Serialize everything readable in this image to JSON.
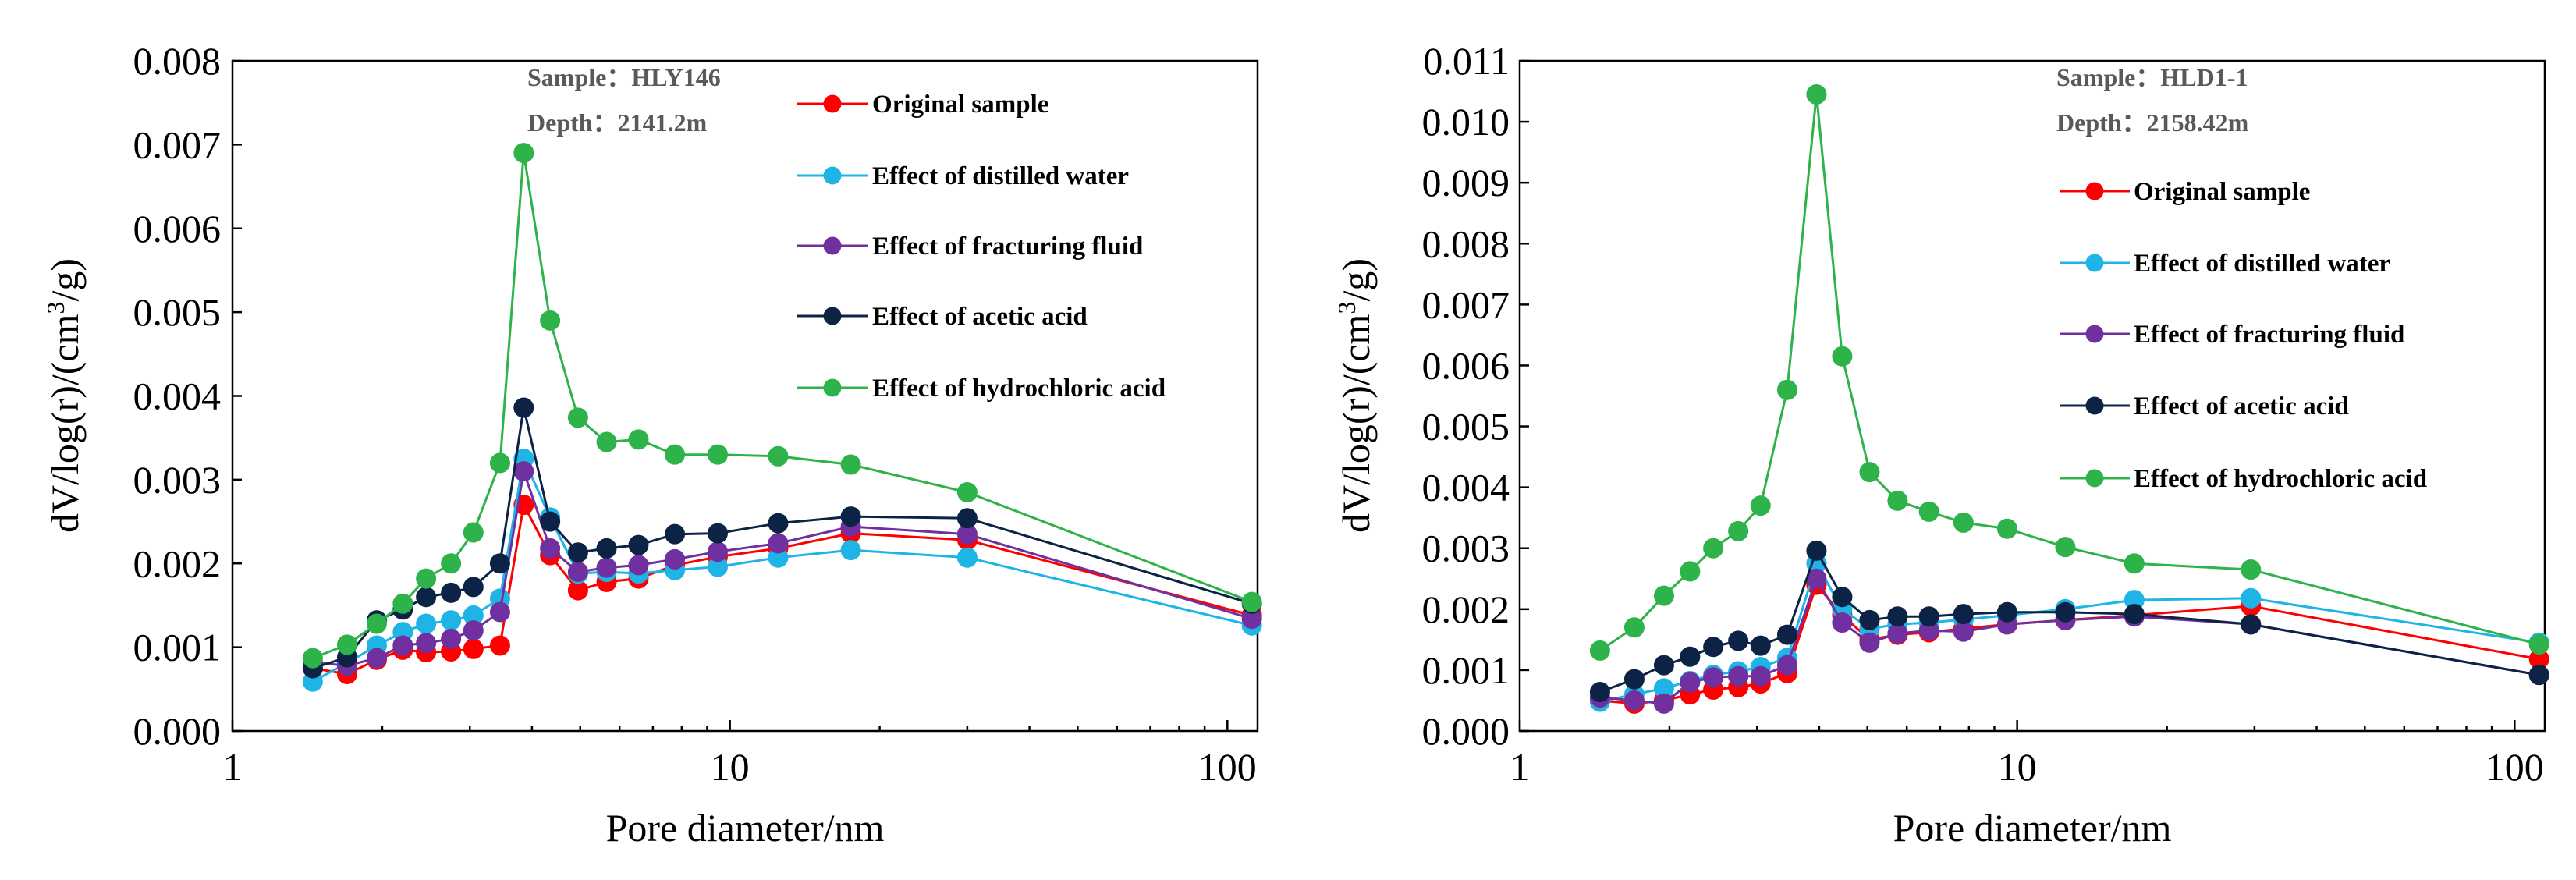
{
  "chart_data": [
    {
      "type": "line",
      "x_scale": "log",
      "xlabel": "Pore diameter/nm",
      "ylabel_main": "dV/log(r)/(cm",
      "ylabel_sup": "3",
      "ylabel_tail": "/g)",
      "xlim": [
        1,
        115
      ],
      "ylim": [
        0,
        0.008
      ],
      "x_ticks": [
        1,
        10,
        100
      ],
      "x_tick_labels": [
        "1",
        "10",
        "100"
      ],
      "y_ticks": [
        0,
        0.001,
        0.002,
        0.003,
        0.004,
        0.005,
        0.006,
        0.007,
        0.008
      ],
      "y_tick_labels": [
        "0.000",
        "0.001",
        "0.002",
        "0.003",
        "0.004",
        "0.005",
        "0.006",
        "0.007",
        "0.008"
      ],
      "sample": "Sample：HLY146",
      "depth": "Depth：2141.2m",
      "x": [
        1.45,
        1.7,
        1.95,
        2.2,
        2.45,
        2.75,
        3.05,
        3.45,
        3.85,
        4.35,
        4.95,
        5.65,
        6.55,
        7.75,
        9.45,
        12.5,
        17.5,
        30,
        112
      ],
      "series": [
        {
          "name": "Original sample",
          "color": "#ff0000",
          "values": [
            0.00075,
            0.00068,
            0.00085,
            0.00097,
            0.00094,
            0.00095,
            0.00098,
            0.00102,
            0.0027,
            0.0021,
            0.00168,
            0.00178,
            0.00182,
            0.00198,
            0.00208,
            0.00218,
            0.00236,
            0.00228,
            0.00138
          ]
        },
        {
          "name": "Effect of distilled water",
          "color": "#1fb4e6",
          "values": [
            0.00059,
            0.00081,
            0.00102,
            0.00118,
            0.00128,
            0.00132,
            0.00138,
            0.00158,
            0.00325,
            0.00255,
            0.00188,
            0.0019,
            0.00188,
            0.00192,
            0.00196,
            0.00207,
            0.00216,
            0.00207,
            0.00126
          ]
        },
        {
          "name": "Effect of fracturing fluid",
          "color": "#7030a0",
          "values": [
            0.00082,
            0.00078,
            0.00087,
            0.00102,
            0.00105,
            0.0011,
            0.0012,
            0.00142,
            0.0031,
            0.00218,
            0.0019,
            0.00195,
            0.00198,
            0.00205,
            0.00214,
            0.00224,
            0.00244,
            0.00235,
            0.00134
          ]
        },
        {
          "name": "Effect of acetic acid",
          "color": "#0d2346",
          "values": [
            0.00075,
            0.00088,
            0.00132,
            0.00145,
            0.0016,
            0.00165,
            0.00172,
            0.002,
            0.00386,
            0.0025,
            0.00213,
            0.00218,
            0.00222,
            0.00235,
            0.00236,
            0.00248,
            0.00256,
            0.00254,
            0.00152
          ]
        },
        {
          "name": "Effect of hydrochloric acid",
          "color": "#2db34a",
          "values": [
            0.00087,
            0.00103,
            0.00128,
            0.00152,
            0.00182,
            0.002,
            0.00237,
            0.0032,
            0.0069,
            0.0049,
            0.00374,
            0.00345,
            0.00348,
            0.0033,
            0.0033,
            0.00328,
            0.00318,
            0.00285,
            0.00154
          ]
        }
      ]
    },
    {
      "type": "line",
      "x_scale": "log",
      "xlabel": "Pore diameter/nm",
      "ylabel_main": "dV/log(r)/(cm",
      "ylabel_sup": "3",
      "ylabel_tail": "/g)",
      "xlim": [
        1,
        115
      ],
      "ylim": [
        0,
        0.011
      ],
      "x_ticks": [
        1,
        10,
        100
      ],
      "x_tick_labels": [
        "1",
        "10",
        "100"
      ],
      "y_ticks": [
        0,
        0.001,
        0.002,
        0.003,
        0.004,
        0.005,
        0.006,
        0.007,
        0.008,
        0.009,
        0.01,
        0.011
      ],
      "y_tick_labels": [
        "0.000",
        "0.001",
        "0.002",
        "0.003",
        "0.004",
        "0.005",
        "0.006",
        "0.007",
        "0.008",
        "0.009",
        "0.010",
        "0.011"
      ],
      "sample": "Sample：HLD1-1",
      "depth": "Depth：2158.42m",
      "x": [
        1.45,
        1.7,
        1.95,
        2.2,
        2.45,
        2.75,
        3.05,
        3.45,
        3.95,
        4.45,
        5.05,
        5.75,
        6.65,
        7.8,
        9.55,
        12.5,
        17.2,
        29.5,
        112
      ],
      "series": [
        {
          "name": "Original sample",
          "color": "#ff0000",
          "values": [
            0.0005,
            0.00045,
            0.0005,
            0.0006,
            0.00068,
            0.00072,
            0.00078,
            0.00095,
            0.0024,
            0.0019,
            0.0015,
            0.00158,
            0.00162,
            0.00168,
            0.00175,
            0.00182,
            0.0019,
            0.00205,
            0.00118
          ]
        },
        {
          "name": "Effect of distilled water",
          "color": "#1fb4e6",
          "values": [
            0.00048,
            0.0006,
            0.0007,
            0.00082,
            0.00092,
            0.00098,
            0.00105,
            0.0012,
            0.00275,
            0.002,
            0.00168,
            0.00175,
            0.00178,
            0.00183,
            0.0019,
            0.002,
            0.00215,
            0.00218,
            0.00145
          ]
        },
        {
          "name": "Effect of fracturing fluid",
          "color": "#7030a0",
          "values": [
            0.00055,
            0.0005,
            0.00045,
            0.0008,
            0.00088,
            0.0009,
            0.0009,
            0.00108,
            0.0025,
            0.00178,
            0.00145,
            0.0016,
            0.00165,
            0.00163,
            0.00175,
            0.00182,
            0.00188,
            0.00175,
            0.00092
          ]
        },
        {
          "name": "Effect of acetic acid",
          "color": "#0d2346",
          "values": [
            0.00064,
            0.00085,
            0.00108,
            0.00122,
            0.00138,
            0.00148,
            0.0014,
            0.00158,
            0.00296,
            0.0022,
            0.00182,
            0.00188,
            0.00188,
            0.00192,
            0.00195,
            0.00195,
            0.00192,
            0.00175,
            0.00092
          ]
        },
        {
          "name": "Effect of hydrochloric acid",
          "color": "#2db34a",
          "values": [
            0.00132,
            0.0017,
            0.00222,
            0.00262,
            0.003,
            0.00328,
            0.0037,
            0.0056,
            0.01045,
            0.00615,
            0.00425,
            0.00378,
            0.0036,
            0.00342,
            0.00332,
            0.00302,
            0.00275,
            0.00265,
            0.00142
          ]
        }
      ]
    }
  ]
}
